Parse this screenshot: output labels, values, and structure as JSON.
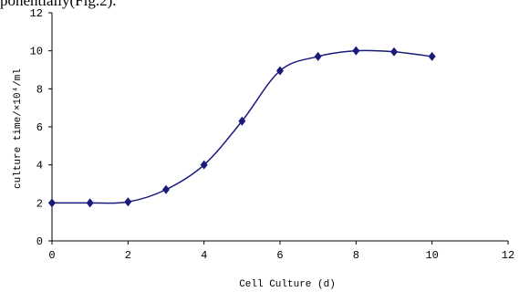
{
  "caption_fragment": "ponentially(Fig.2).",
  "chart_data": {
    "type": "line",
    "title": "",
    "xlabel": "Cell Culture (d)",
    "ylabel": "culture time/×10⁴/ml",
    "xlim": [
      0,
      12
    ],
    "ylim": [
      0,
      12
    ],
    "xticks": [
      0,
      2,
      4,
      6,
      8,
      10,
      12
    ],
    "yticks": [
      0,
      2,
      4,
      6,
      8,
      10,
      12
    ],
    "grid": false,
    "legend": "none",
    "series": [
      {
        "marker": "diamond",
        "color": "#1a1a7a",
        "x": [
          0,
          1,
          2,
          3,
          4,
          5,
          6,
          7,
          8,
          9,
          10
        ],
        "y": [
          2.0,
          2.0,
          2.05,
          2.7,
          4.0,
          6.3,
          8.95,
          9.7,
          10.0,
          9.95,
          9.7
        ]
      }
    ]
  }
}
